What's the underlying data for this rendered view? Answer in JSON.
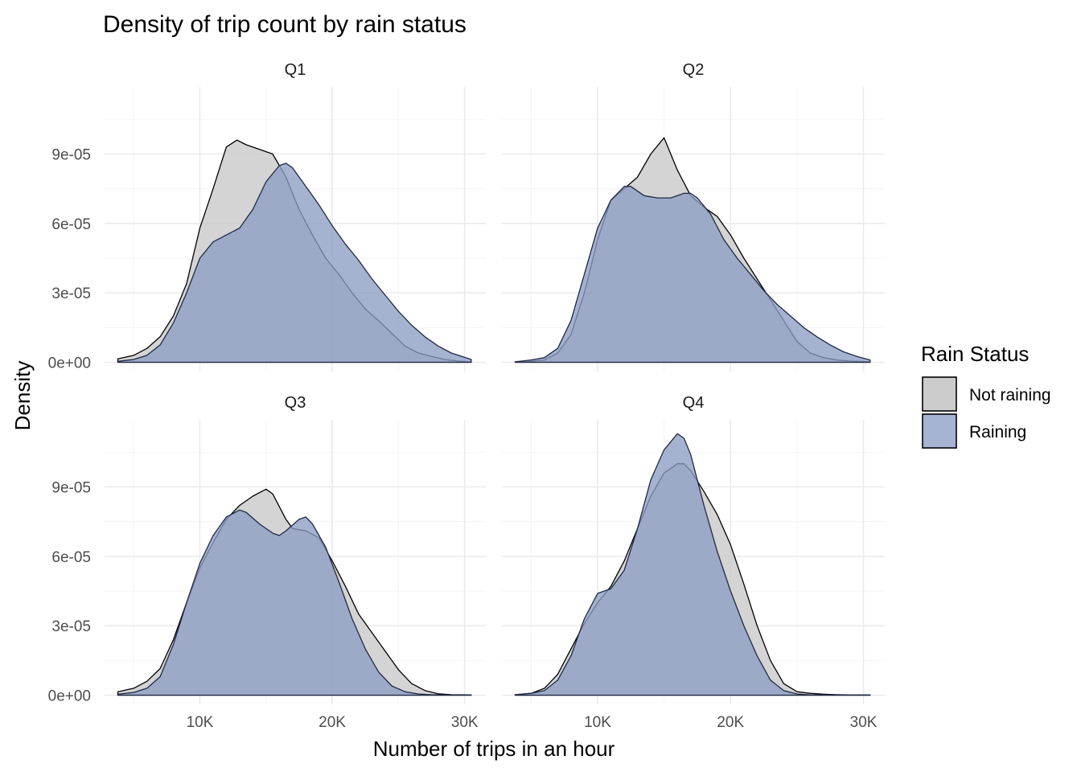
{
  "chart_data": {
    "type": "area",
    "title": "Density of trip count by rain status",
    "xlabel": "Number of trips in an hour",
    "ylabel": "Density",
    "xlim": [
      2800,
      31600
    ],
    "ylim": [
      -4e-06,
      0.000119
    ],
    "x_ticks": [
      10000,
      20000,
      30000
    ],
    "x_tick_labels": [
      "10K",
      "20K",
      "30K"
    ],
    "x_minor_ticks": [
      5000,
      15000,
      25000
    ],
    "y_ticks": [
      0,
      3e-05,
      6e-05,
      9e-05
    ],
    "y_tick_labels": [
      "0e+00",
      "3e-05",
      "6e-05",
      "9e-05"
    ],
    "y_minor_ticks": [
      1.5e-05,
      4.5e-05,
      7.5e-05,
      0.000105
    ],
    "legend": {
      "title": "Rain Status",
      "position": "right",
      "entries": [
        {
          "name": "Not raining",
          "color": "#cccccc"
        },
        {
          "name": "Raining",
          "color": "#99a9cc"
        }
      ]
    },
    "colors": {
      "Not raining": "#cccccc",
      "Raining": "#8c9dc4",
      "outline": "#000000",
      "grid": "#ebebeb"
    },
    "panels": [
      {
        "name": "Q1",
        "series": [
          {
            "name": "Not raining",
            "x": [
              3800,
              5000,
              6000,
              7000,
              8000,
              9000,
              10000,
              11000,
              12000,
              12800,
              13500,
              14500,
              15500,
              16500,
              17500,
              18500,
              19500,
              20500,
              21500,
              22500,
              23500,
              24500,
              25500,
              26500,
              27500,
              28500,
              29500,
              30500
            ],
            "y": [
              1.5e-06,
              3e-06,
              6e-06,
              1.1e-05,
              2e-05,
              3.4e-05,
              5.8e-05,
              7.5e-05,
              9.3e-05,
              9.6e-05,
              9.4e-05,
              9.2e-05,
              9e-05,
              8e-05,
              6.6e-05,
              5.5e-05,
              4.5e-05,
              3.8e-05,
              3e-05,
              2.3e-05,
              1.8e-05,
              1.25e-05,
              7e-06,
              4e-06,
              2.5e-06,
              1.2e-06,
              5e-07,
              2e-07
            ]
          },
          {
            "name": "Raining",
            "x": [
              3800,
              5000,
              6000,
              7000,
              8000,
              9000,
              10000,
              11000,
              12000,
              13000,
              14000,
              15000,
              16000,
              16500,
              17000,
              18000,
              19000,
              20000,
              21000,
              22000,
              23000,
              24000,
              25000,
              26000,
              27000,
              28000,
              29000,
              30500
            ],
            "y": [
              4e-07,
              1.2e-06,
              3e-06,
              7.5e-06,
              1.7e-05,
              3e-05,
              4.5e-05,
              5.2e-05,
              5.5e-05,
              5.8e-05,
              6.6e-05,
              7.8e-05,
              8.5e-05,
              8.6e-05,
              8.4e-05,
              7.6e-05,
              6.8e-05,
              5.9e-05,
              5.1e-05,
              4.4e-05,
              3.6e-05,
              2.9e-05,
              2.2e-05,
              1.6e-05,
              1.1e-05,
              7e-06,
              4e-06,
              1.2e-06
            ]
          }
        ]
      },
      {
        "name": "Q2",
        "series": [
          {
            "name": "Not raining",
            "x": [
              3800,
              5000,
              6000,
              7000,
              8000,
              9000,
              10000,
              11000,
              12000,
              13000,
              14000,
              15000,
              16000,
              17000,
              18000,
              19000,
              20000,
              21000,
              22000,
              23000,
              24000,
              25000,
              26000,
              27000,
              28000,
              29000,
              30500
            ],
            "y": [
              1e-07,
              4e-07,
              1e-06,
              4e-06,
              1.2e-05,
              3e-05,
              5.3e-05,
              7e-05,
              7.5e-05,
              8e-05,
              9e-05,
              9.7e-05,
              8.3e-05,
              7.2e-05,
              6.7e-05,
              6.3e-05,
              5.5e-05,
              4.5e-05,
              3.6e-05,
              2.7e-05,
              1.8e-05,
              9e-06,
              4e-06,
              2e-06,
              1e-06,
              5e-07,
              2e-07
            ]
          },
          {
            "name": "Raining",
            "x": [
              3800,
              5000,
              6000,
              7000,
              8000,
              9000,
              10000,
              11000,
              12000,
              12500,
              13500,
              14500,
              15500,
              16500,
              17000,
              17500,
              18500,
              19500,
              20500,
              21500,
              22500,
              23500,
              24500,
              25500,
              26500,
              27500,
              28500,
              29500,
              30500
            ],
            "y": [
              2e-07,
              1e-06,
              2e-06,
              6e-06,
              1.8e-05,
              3.8e-05,
              5.8e-05,
              7e-05,
              7.6e-05,
              7.6e-05,
              7.2e-05,
              7.1e-05,
              7.1e-05,
              7.3e-05,
              7.3e-05,
              7.1e-05,
              6.4e-05,
              5.3e-05,
              4.5e-05,
              3.8e-05,
              3.1e-05,
              2.5e-05,
              2e-05,
              1.5e-05,
              1.1e-05,
              7.5e-06,
              4.5e-06,
              2.5e-06,
              1e-06
            ]
          }
        ]
      },
      {
        "name": "Q3",
        "series": [
          {
            "name": "Not raining",
            "x": [
              3800,
              5000,
              6000,
              7000,
              8000,
              9000,
              10000,
              11000,
              12000,
              13000,
              14000,
              15000,
              15500,
              16500,
              17000,
              18000,
              19000,
              20000,
              21000,
              22000,
              23000,
              24000,
              25000,
              26000,
              27000,
              28000,
              29000,
              30500
            ],
            "y": [
              1.5e-06,
              3e-06,
              6e-06,
              1.15e-05,
              2.4e-05,
              4e-05,
              5.5e-05,
              6.6e-05,
              7.6e-05,
              8.2e-05,
              8.6e-05,
              8.9e-05,
              8.7e-05,
              7.6e-05,
              7.2e-05,
              7.1e-05,
              6.8e-05,
              5.8e-05,
              4.7e-05,
              3.5e-05,
              2.7e-05,
              1.9e-05,
              1.1e-05,
              5e-06,
              2e-06,
              6e-07,
              2e-07,
              1e-07
            ]
          },
          {
            "name": "Raining",
            "x": [
              3800,
              5000,
              6000,
              7000,
              8000,
              9000,
              10000,
              11000,
              12000,
              13000,
              13500,
              14500,
              15500,
              16000,
              16500,
              17500,
              18000,
              18500,
              19500,
              20500,
              21500,
              22500,
              23500,
              24500,
              25500,
              26500,
              27500,
              28500,
              30500
            ],
            "y": [
              4e-07,
              1.2e-06,
              3e-06,
              8e-06,
              2.2e-05,
              4e-05,
              5.7e-05,
              6.9e-05,
              7.7e-05,
              8e-05,
              7.9e-05,
              7.4e-05,
              7e-05,
              6.9e-05,
              7.1e-05,
              7.6e-05,
              7.7e-05,
              7.4e-05,
              6.4e-05,
              4.9e-05,
              3.3e-05,
              2e-05,
              1e-05,
              4e-06,
              1.5e-06,
              5e-07,
              2e-07,
              1e-07,
              1e-07
            ]
          }
        ]
      },
      {
        "name": "Q4",
        "series": [
          {
            "name": "Not raining",
            "x": [
              3800,
              5000,
              6000,
              7000,
              8000,
              9000,
              10000,
              11000,
              12000,
              13000,
              14000,
              15000,
              16000,
              16500,
              17000,
              18000,
              19000,
              20000,
              21000,
              22000,
              23000,
              24000,
              25000,
              26000,
              27000,
              28000,
              29000,
              30500
            ],
            "y": [
              2e-07,
              8e-07,
              3e-06,
              9e-06,
              2e-05,
              3.1e-05,
              4e-05,
              4.7e-05,
              5.8e-05,
              7.2e-05,
              8.6e-05,
              9.6e-05,
              0.0001,
              0.0001,
              9.7e-05,
              8.8e-05,
              7.8e-05,
              6.5e-05,
              4.8e-05,
              3e-05,
              1.5e-05,
              5e-06,
              1.5e-06,
              8e-07,
              4e-07,
              2e-07,
              1e-07,
              1e-07
            ]
          },
          {
            "name": "Raining",
            "x": [
              3800,
              5000,
              6000,
              7000,
              8000,
              9000,
              10000,
              11000,
              12000,
              13000,
              14000,
              15000,
              16000,
              16500,
              17000,
              18000,
              19000,
              20000,
              21000,
              22000,
              23000,
              24000,
              25000,
              26000,
              27000,
              28000,
              29000,
              30500
            ],
            "y": [
              2e-07,
              8e-07,
              2e-06,
              6.5e-06,
              1.7e-05,
              3.3e-05,
              4.4e-05,
              4.6e-05,
              5.4e-05,
              7.2e-05,
              9.3e-05,
              0.000106,
              0.000113,
              0.000111,
              0.000104,
              8.2e-05,
              6.2e-05,
              4.5e-05,
              3e-05,
              1.7e-05,
              6.5e-06,
              2e-06,
              5e-07,
              1e-07,
              1e-07,
              1e-07,
              1e-07,
              1e-07
            ]
          }
        ]
      }
    ]
  }
}
